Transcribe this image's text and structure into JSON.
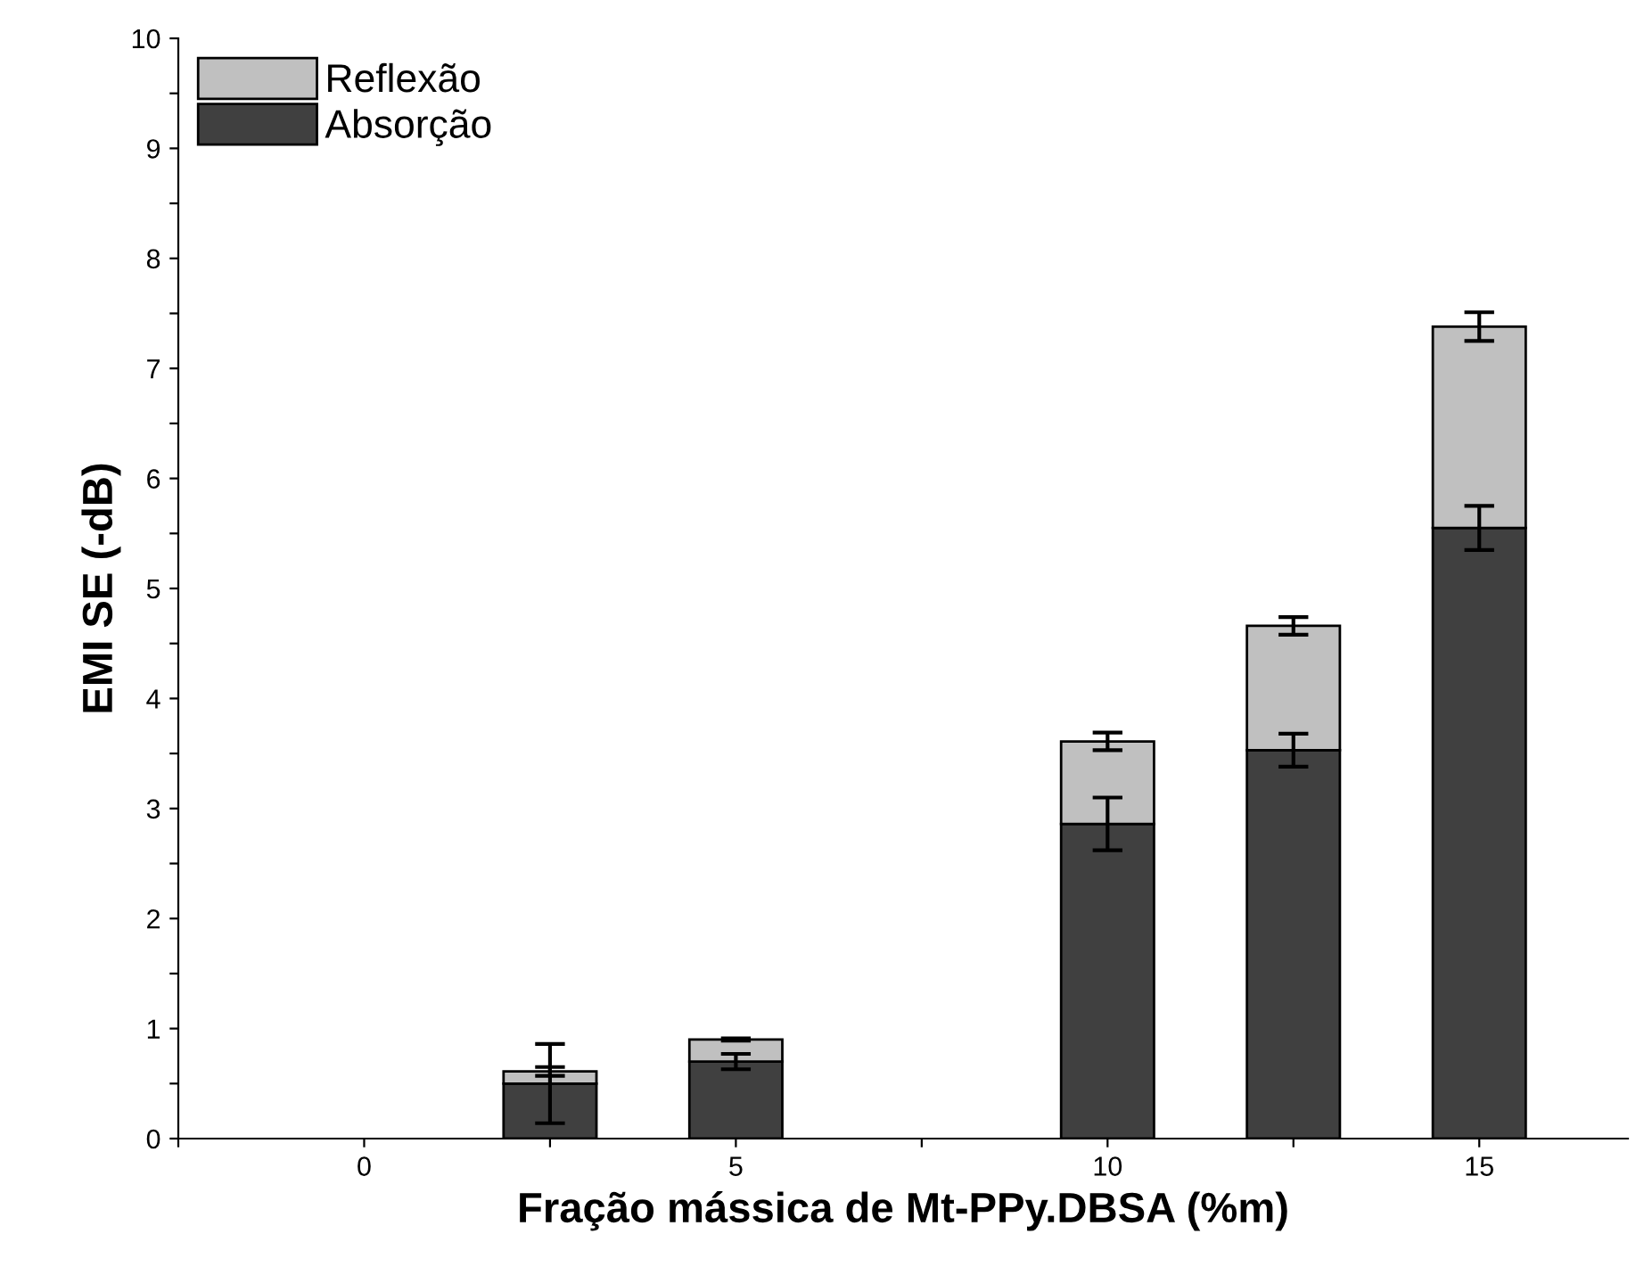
{
  "chart_data": {
    "type": "bar",
    "stacked": true,
    "xlabel": "Fração mássica de Mt-PPy.DBSA (%m)",
    "ylabel": "EMI SE (-dB)",
    "x": [
      2.5,
      5,
      10,
      12.5,
      15
    ],
    "series": [
      {
        "name": "Absorção",
        "color": "#404040",
        "values": [
          0.5,
          0.7,
          2.86,
          3.53,
          5.55
        ],
        "errors": [
          0.36,
          0.07,
          0.24,
          0.15,
          0.2
        ]
      },
      {
        "name": "Reflexão",
        "color": "#c0c0c0",
        "values": [
          0.11,
          0.2,
          0.75,
          1.13,
          1.83
        ],
        "errors": [
          0.04,
          0.01,
          0.08,
          0.08,
          0.13
        ]
      }
    ],
    "xlim": [
      -2.5,
      17
    ],
    "ylim": [
      0,
      10
    ],
    "xticks": [
      {
        "value": -2.5,
        "label": null
      },
      0,
      {
        "value": 2.5,
        "label": null
      },
      5,
      {
        "value": 7.5,
        "label": null
      },
      10,
      {
        "value": 12.5,
        "label": null
      },
      15
    ],
    "yticks": [
      0,
      {
        "value": 0.5,
        "label": null
      },
      1,
      {
        "value": 1.5,
        "label": null
      },
      2,
      {
        "value": 2.5,
        "label": null
      },
      3,
      {
        "value": 3.5,
        "label": null
      },
      4,
      {
        "value": 4.5,
        "label": null
      },
      5,
      {
        "value": 5.5,
        "label": null
      },
      6,
      {
        "value": 6.5,
        "label": null
      },
      7,
      {
        "value": 7.5,
        "label": null
      },
      8,
      {
        "value": 8.5,
        "label": null
      },
      9,
      {
        "value": 9.5,
        "label": null
      },
      10
    ],
    "grid": false,
    "legend": "top left"
  }
}
